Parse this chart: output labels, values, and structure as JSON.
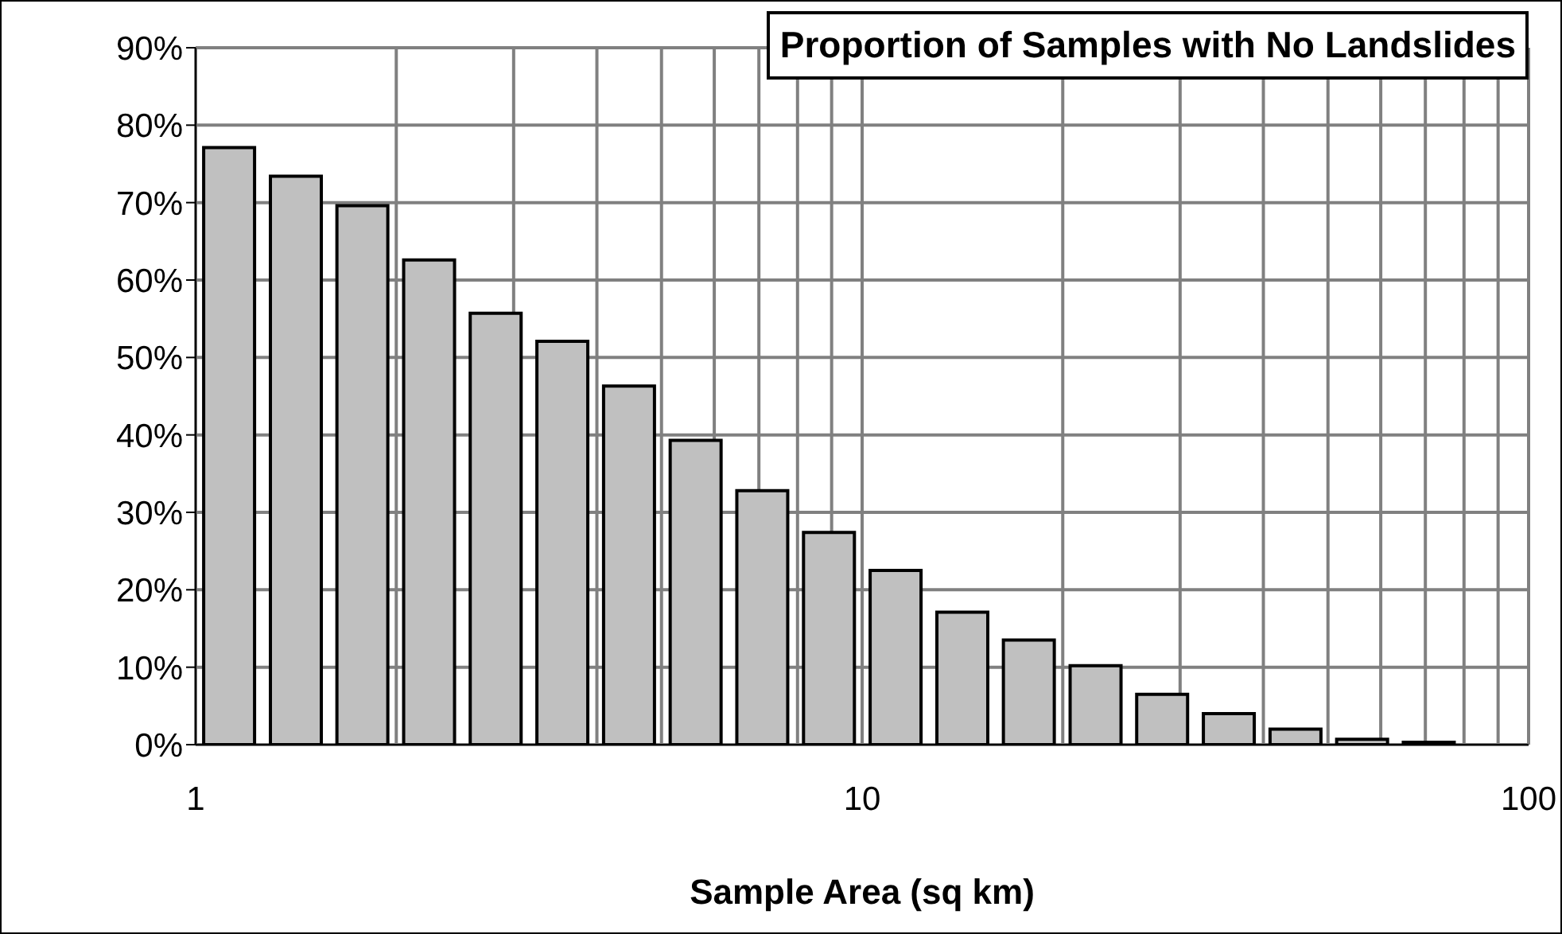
{
  "chart_data": {
    "type": "bar",
    "title": "Proportion of Samples with No Landslides",
    "xlabel": "Sample Area (sq km)",
    "log": "x",
    "grid": true,
    "color": "#c0c0c0",
    "x": [
      1.122,
      1.413,
      1.778,
      2.239,
      2.818,
      3.548,
      4.467,
      5.623,
      7.079,
      8.913,
      11.22,
      14.13,
      17.78,
      22.39,
      28.18,
      35.48,
      44.67,
      56.23,
      70.79
    ],
    "values": [
      77.1,
      73.4,
      69.6,
      62.6,
      55.7,
      52.1,
      46.3,
      39.3,
      32.8,
      27.4,
      22.5,
      17.1,
      13.5,
      10.2,
      6.5,
      4.0,
      2.0,
      0.7,
      0.3
    ],
    "xlim": [
      1,
      100
    ],
    "xticks": [
      1,
      {
        "value": 2,
        "label": null
      },
      {
        "value": 3,
        "label": null
      },
      {
        "value": 4,
        "label": null
      },
      {
        "value": 5,
        "label": null
      },
      {
        "value": 6,
        "label": null
      },
      {
        "value": 7,
        "label": null
      },
      {
        "value": 8,
        "label": null
      },
      {
        "value": 9,
        "label": null
      },
      10,
      {
        "value": 20,
        "label": null
      },
      {
        "value": 30,
        "label": null
      },
      {
        "value": 40,
        "label": null
      },
      {
        "value": 50,
        "label": null
      },
      {
        "value": 60,
        "label": null
      },
      {
        "value": 70,
        "label": null
      },
      {
        "value": 80,
        "label": null
      },
      {
        "value": 90,
        "label": null
      },
      100
    ],
    "ylim": [
      0,
      90
    ],
    "yticks": [
      {
        "value": 0,
        "label": "0%"
      },
      {
        "value": 10,
        "label": "10%"
      },
      {
        "value": 20,
        "label": "20%"
      },
      {
        "value": 30,
        "label": "30%"
      },
      {
        "value": 40,
        "label": "40%"
      },
      {
        "value": 50,
        "label": "50%"
      },
      {
        "value": 60,
        "label": "60%"
      },
      {
        "value": 70,
        "label": "70%"
      },
      {
        "value": 80,
        "label": "80%"
      },
      {
        "value": 90,
        "label": "90%"
      }
    ]
  }
}
